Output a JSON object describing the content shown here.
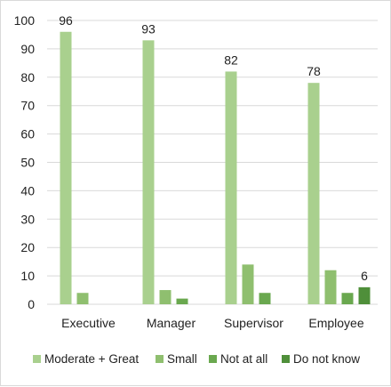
{
  "chart_data": {
    "type": "bar",
    "categories": [
      "Executive",
      "Manager",
      "Supervisor",
      "Employee"
    ],
    "ylim": [
      0,
      100
    ],
    "yticks": [
      0,
      10,
      20,
      30,
      40,
      50,
      60,
      70,
      80,
      90,
      100
    ],
    "grid": true,
    "legend_position": "bottom",
    "series": [
      {
        "name": "Moderate + Great",
        "color": "#a9d08e",
        "values": [
          96,
          93,
          82,
          78
        ],
        "labels": [
          "96",
          "93",
          "82",
          "78"
        ]
      },
      {
        "name": "Small",
        "color": "#8fbf6f",
        "values": [
          4,
          5,
          14,
          12
        ],
        "labels": [
          null,
          null,
          null,
          null
        ]
      },
      {
        "name": "Not at all",
        "color": "#6aa84f",
        "values": [
          0,
          2,
          4,
          4
        ],
        "labels": [
          null,
          null,
          null,
          null
        ]
      },
      {
        "name": "Do not know",
        "color": "#4f8f3a",
        "values": [
          0,
          0,
          0,
          6
        ],
        "labels": [
          null,
          null,
          null,
          "6"
        ]
      }
    ]
  }
}
